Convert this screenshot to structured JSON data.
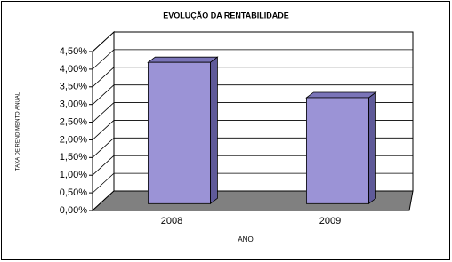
{
  "chart_data": {
    "type": "bar3d",
    "title": "EVOLUÇÃO DA RENTABILIDADE",
    "categories": [
      "2008",
      "2009"
    ],
    "values": [
      4.0,
      3.0
    ],
    "color": "#9b93d6",
    "x_label": "ANO",
    "y_label": "TAXA DE RENDIMENTO ANUAL",
    "ylim": [
      0,
      4.5
    ],
    "yticks": [
      {
        "value": 0,
        "label": "0,00%"
      },
      {
        "value": 0.5,
        "label": "0,50%"
      },
      {
        "value": 1,
        "label": "1,00%"
      },
      {
        "value": 1.5,
        "label": "1,50%"
      },
      {
        "value": 2,
        "label": "2,00%"
      },
      {
        "value": 2.5,
        "label": "2,50%"
      },
      {
        "value": 3,
        "label": "3,00%"
      },
      {
        "value": 3.5,
        "label": "3,50%"
      },
      {
        "value": 4,
        "label": "4,00%"
      },
      {
        "value": 4.5,
        "label": "4,50%"
      }
    ],
    "grid": true
  }
}
